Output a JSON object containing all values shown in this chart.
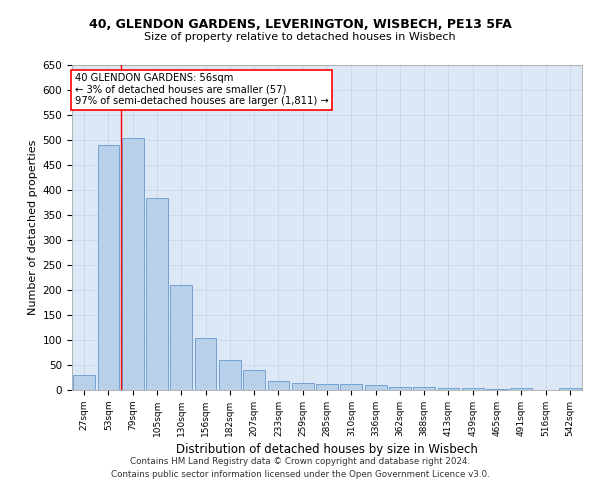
{
  "title1": "40, GLENDON GARDENS, LEVERINGTON, WISBECH, PE13 5FA",
  "title2": "Size of property relative to detached houses in Wisbech",
  "xlabel": "Distribution of detached houses by size in Wisbech",
  "ylabel": "Number of detached properties",
  "categories": [
    "27sqm",
    "53sqm",
    "79sqm",
    "105sqm",
    "130sqm",
    "156sqm",
    "182sqm",
    "207sqm",
    "233sqm",
    "259sqm",
    "285sqm",
    "310sqm",
    "336sqm",
    "362sqm",
    "388sqm",
    "413sqm",
    "439sqm",
    "465sqm",
    "491sqm",
    "516sqm",
    "542sqm"
  ],
  "values": [
    30,
    490,
    505,
    385,
    210,
    105,
    60,
    40,
    18,
    15,
    12,
    12,
    10,
    7,
    6,
    5,
    5,
    2,
    5,
    1,
    5
  ],
  "bar_color": "#b8d0ea",
  "bar_edge_color": "#6699cc",
  "annotation_box_text": "40 GLENDON GARDENS: 56sqm\n← 3% of detached houses are smaller (57)\n97% of semi-detached houses are larger (1,811) →",
  "annotation_box_color": "white",
  "annotation_box_edge_color": "red",
  "vline_color": "red",
  "vline_x": 1.5,
  "ylim": [
    0,
    650
  ],
  "grid_color": "#c8d4e8",
  "background_color": "#dce8f5",
  "footer1": "Contains HM Land Registry data © Crown copyright and database right 2024.",
  "footer2": "Contains public sector information licensed under the Open Government Licence v3.0.",
  "yticks": [
    0,
    50,
    100,
    150,
    200,
    250,
    300,
    350,
    400,
    450,
    500,
    550,
    600,
    650
  ]
}
